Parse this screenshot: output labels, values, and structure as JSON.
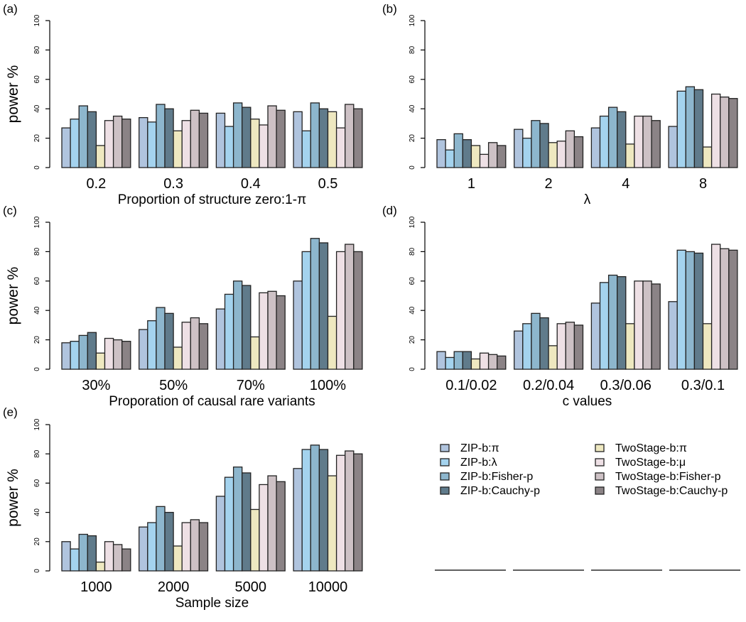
{
  "chart_data": [
    {
      "tag": "(a)",
      "type": "bar",
      "ylabel": "power %",
      "xlabel": "Proportion of structure zero:1-π",
      "categories": [
        "0.2",
        "0.3",
        "0.4",
        "0.5"
      ],
      "ylim": [
        0,
        100
      ],
      "yticks": [
        "0",
        "20",
        "40",
        "60",
        "80",
        "100"
      ],
      "values": [
        [
          27,
          33,
          42,
          38,
          15,
          32,
          35,
          33
        ],
        [
          34,
          31,
          43,
          40,
          25,
          32,
          39,
          37
        ],
        [
          37,
          28,
          44,
          41,
          33,
          29,
          42,
          39
        ],
        [
          38,
          25,
          44,
          40,
          38,
          27,
          43,
          40
        ]
      ]
    },
    {
      "tag": "(b)",
      "type": "bar",
      "ylabel": "",
      "xlabel": "λ",
      "categories": [
        "1",
        "2",
        "4",
        "8"
      ],
      "ylim": [
        0,
        100
      ],
      "yticks": [
        "0",
        "20",
        "40",
        "60",
        "80",
        "100"
      ],
      "values": [
        [
          19,
          12,
          23,
          19,
          15,
          9,
          17,
          15
        ],
        [
          26,
          20,
          32,
          30,
          17,
          18,
          25,
          21
        ],
        [
          27,
          35,
          41,
          38,
          16,
          35,
          35,
          32
        ],
        [
          28,
          52,
          55,
          53,
          14,
          50,
          48,
          47
        ]
      ]
    },
    {
      "tag": "(c)",
      "type": "bar",
      "ylabel": "power %",
      "xlabel": "Proporation of causal rare variants",
      "categories": [
        "30%",
        "50%",
        "70%",
        "100%"
      ],
      "ylim": [
        0,
        100
      ],
      "yticks": [
        "0",
        "20",
        "40",
        "60",
        "80",
        "100"
      ],
      "values": [
        [
          18,
          19,
          23,
          25,
          11,
          21,
          20,
          19
        ],
        [
          27,
          33,
          42,
          38,
          15,
          32,
          35,
          31
        ],
        [
          41,
          51,
          60,
          57,
          22,
          52,
          53,
          50
        ],
        [
          60,
          80,
          89,
          86,
          36,
          80,
          85,
          80
        ]
      ]
    },
    {
      "tag": "(d)",
      "type": "bar",
      "ylabel": "",
      "xlabel": "c values",
      "categories": [
        "0.1/0.02",
        "0.2/0.04",
        "0.3/0.06",
        "0.3/0.1"
      ],
      "ylim": [
        0,
        100
      ],
      "yticks": [
        "0",
        "20",
        "40",
        "60",
        "80",
        "100"
      ],
      "values": [
        [
          12,
          8,
          12,
          12,
          7,
          11,
          10,
          9
        ],
        [
          26,
          31,
          38,
          35,
          16,
          31,
          32,
          30
        ],
        [
          45,
          59,
          64,
          63,
          31,
          60,
          60,
          58
        ],
        [
          46,
          81,
          80,
          79,
          31,
          85,
          82,
          81
        ]
      ]
    },
    {
      "tag": "(e)",
      "type": "bar",
      "ylabel": "power %",
      "xlabel": "Sample size",
      "categories": [
        "1000",
        "2000",
        "5000",
        "10000"
      ],
      "ylim": [
        0,
        100
      ],
      "yticks": [
        "0",
        "20",
        "40",
        "60",
        "80",
        "100"
      ],
      "values": [
        [
          20,
          15,
          25,
          24,
          6,
          20,
          18,
          15
        ],
        [
          30,
          33,
          44,
          40,
          17,
          33,
          35,
          33
        ],
        [
          51,
          64,
          71,
          67,
          42,
          59,
          65,
          61
        ],
        [
          70,
          83,
          86,
          83,
          65,
          79,
          82,
          80
        ]
      ]
    }
  ],
  "series": [
    {
      "name": "ZIP-b:π",
      "color": "#B0C4DE"
    },
    {
      "name": "ZIP-b:λ",
      "color": "#A4D3EE"
    },
    {
      "name": "ZIP-b:Fisher-p",
      "color": "#8DB6CD"
    },
    {
      "name": "ZIP-b:Cauchy-p",
      "color": "#607B8B"
    },
    {
      "name": "TwoStage-b:π",
      "color": "#EEE8C0"
    },
    {
      "name": "TwoStage-b:μ",
      "color": "#EEE0E5"
    },
    {
      "name": "TwoStage-b:Fisher-p",
      "color": "#CDC1C5"
    },
    {
      "name": "TwoStage-b:Cauchy-p",
      "color": "#8B8386"
    }
  ],
  "legend_position": "bottom-right",
  "grid": false
}
